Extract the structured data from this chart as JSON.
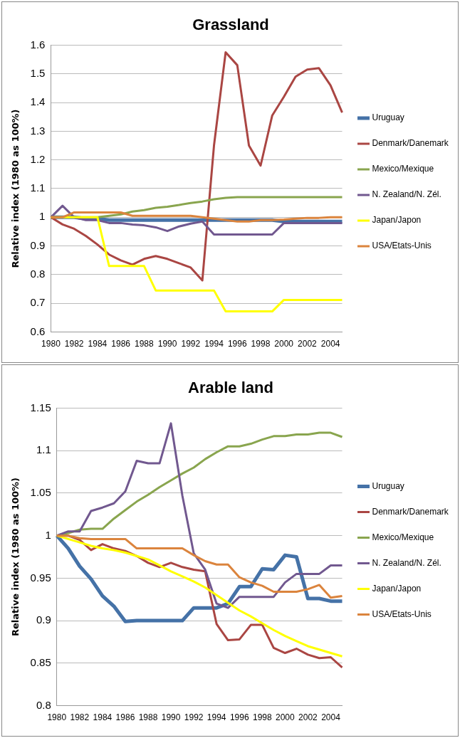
{
  "chart_data": [
    {
      "type": "line",
      "title": "Grassland",
      "ylabel": "Relative index (1980 as 100%)",
      "categories": [
        "1980",
        null,
        "1982",
        null,
        "1984",
        null,
        "1986",
        null,
        "1988",
        null,
        "1990",
        null,
        "1992",
        null,
        "1994",
        null,
        "1996",
        null,
        "1998",
        null,
        "2000",
        null,
        "2002",
        null,
        "2004",
        null
      ],
      "ylim": [
        0.6,
        1.6
      ],
      "yticks": [
        0.6,
        0.7,
        0.8,
        0.9,
        1,
        1.1,
        1.2,
        1.3,
        1.4,
        1.5,
        1.6
      ],
      "grid": "y",
      "legend": "right",
      "marker": "none",
      "line_style": "solid",
      "series": [
        {
          "name": "Uruguay",
          "color": "#4572a7",
          "values": [
            1.0,
            1.0,
            1.0,
            0.995,
            0.995,
            0.99,
            0.99,
            0.99,
            0.99,
            0.99,
            0.99,
            0.99,
            0.99,
            0.99,
            0.99,
            0.99,
            0.99,
            0.99,
            0.99,
            0.99,
            0.985,
            0.985,
            0.985,
            0.985,
            0.985,
            0.985
          ]
        },
        {
          "name": "Denmark/Danemark",
          "color": "#aa4643",
          "values": [
            1.0,
            0.975,
            0.96,
            0.935,
            0.905,
            0.87,
            0.85,
            0.835,
            0.855,
            0.865,
            0.855,
            0.84,
            0.825,
            0.78,
            1.25,
            1.575,
            1.53,
            1.25,
            1.18,
            1.355,
            1.42,
            1.49,
            1.515,
            1.52,
            1.46,
            1.365
          ]
        },
        {
          "name": "Mexico/Mexique",
          "color": "#89a54e",
          "values": [
            1.0,
            1.0,
            1.0,
            1.0,
            1.0,
            1.005,
            1.01,
            1.02,
            1.025,
            1.033,
            1.037,
            1.043,
            1.05,
            1.055,
            1.063,
            1.068,
            1.07,
            1.07,
            1.07,
            1.07,
            1.07,
            1.07,
            1.07,
            1.07,
            1.07,
            1.07
          ]
        },
        {
          "name": "N. Zealand/N. Zél.",
          "color": "#71588f",
          "values": [
            1.0,
            1.04,
            1.0,
            0.99,
            0.99,
            0.98,
            0.98,
            0.975,
            0.972,
            0.965,
            0.952,
            0.968,
            0.978,
            0.985,
            0.94,
            0.94,
            0.94,
            0.94,
            0.94,
            0.94,
            0.98,
            0.98,
            0.98,
            0.98,
            0.98,
            0.98
          ]
        },
        {
          "name": "Japan/Japon",
          "color": "#ffff00",
          "values": [
            1.0,
            1.0,
            1.0,
            1.0,
            1.0,
            0.83,
            0.83,
            0.83,
            0.83,
            0.745,
            0.745,
            0.745,
            0.745,
            0.745,
            0.745,
            0.672,
            0.672,
            0.672,
            0.672,
            0.672,
            0.712,
            0.712,
            0.712,
            0.712,
            0.712,
            0.712
          ]
        },
        {
          "name": "USA/Etats-Unis",
          "color": "#db843d",
          "values": [
            1.0,
            1.0,
            1.017,
            1.017,
            1.017,
            1.017,
            1.017,
            1.005,
            1.005,
            1.005,
            1.005,
            1.005,
            1.005,
            1.0,
            0.995,
            0.99,
            0.985,
            0.985,
            0.99,
            0.99,
            0.992,
            0.995,
            0.998,
            0.998,
            1.0,
            1.0
          ]
        }
      ]
    },
    {
      "type": "line",
      "title": "Arable land",
      "ylabel": "Relative index (1980 as 100%)",
      "categories": [
        "1980",
        null,
        "1982",
        null,
        "1984",
        null,
        "1986",
        null,
        "1988",
        null,
        "1990",
        null,
        "1992",
        null,
        "1994",
        null,
        "1996",
        null,
        "1998",
        null,
        "2000",
        null,
        "2002",
        null,
        "2004",
        null
      ],
      "ylim": [
        0.8,
        1.15
      ],
      "yticks": [
        0.8,
        0.85,
        0.9,
        0.95,
        1,
        1.05,
        1.1,
        1.15
      ],
      "grid": "y",
      "legend": "right",
      "marker": "none",
      "line_style": "solid",
      "series": [
        {
          "name": "Uruguay",
          "color": "#4572a7",
          "values": [
            1.0,
            0.985,
            0.964,
            0.949,
            0.929,
            0.917,
            0.899,
            0.9,
            0.9,
            0.9,
            0.9,
            0.9,
            0.915,
            0.915,
            0.915,
            0.92,
            0.94,
            0.94,
            0.961,
            0.96,
            0.977,
            0.975,
            0.926,
            0.926,
            0.923,
            0.923
          ]
        },
        {
          "name": "Denmark/Danemark",
          "color": "#aa4643",
          "values": [
            1.0,
            1.0,
            0.995,
            0.983,
            0.99,
            0.985,
            0.982,
            0.976,
            0.968,
            0.963,
            0.968,
            0.963,
            0.96,
            0.958,
            0.896,
            0.877,
            0.878,
            0.895,
            0.895,
            0.868,
            0.862,
            0.867,
            0.86,
            0.856,
            0.857,
            0.845
          ]
        },
        {
          "name": "Mexico/Mexique",
          "color": "#89a54e",
          "values": [
            1.0,
            1.003,
            1.007,
            1.008,
            1.008,
            1.02,
            1.03,
            1.04,
            1.048,
            1.057,
            1.065,
            1.073,
            1.08,
            1.09,
            1.098,
            1.105,
            1.105,
            1.108,
            1.113,
            1.117,
            1.117,
            1.119,
            1.119,
            1.121,
            1.121,
            1.116
          ]
        },
        {
          "name": "N. Zealand/N. Zél.",
          "color": "#71588f",
          "values": [
            1.0,
            1.005,
            1.005,
            1.029,
            1.033,
            1.038,
            1.052,
            1.088,
            1.085,
            1.085,
            1.132,
            1.047,
            0.979,
            0.96,
            0.92,
            0.915,
            0.928,
            0.928,
            0.928,
            0.928,
            0.945,
            0.955,
            0.955,
            0.955,
            0.965,
            0.965
          ]
        },
        {
          "name": "Japan/Japon",
          "color": "#ffff00",
          "values": [
            1.0,
            0.996,
            0.992,
            0.988,
            0.985,
            0.983,
            0.98,
            0.976,
            0.972,
            0.965,
            0.958,
            0.952,
            0.946,
            0.939,
            0.93,
            0.921,
            0.912,
            0.905,
            0.897,
            0.889,
            0.882,
            0.876,
            0.87,
            0.866,
            0.862,
            0.858
          ]
        },
        {
          "name": "USA/Etats-Unis",
          "color": "#db843d",
          "values": [
            1.0,
            1.0,
            0.997,
            0.996,
            0.996,
            0.996,
            0.996,
            0.985,
            0.985,
            0.985,
            0.985,
            0.985,
            0.977,
            0.97,
            0.966,
            0.966,
            0.951,
            0.945,
            0.941,
            0.934,
            0.934,
            0.934,
            0.937,
            0.942,
            0.927,
            0.929
          ]
        }
      ]
    }
  ]
}
